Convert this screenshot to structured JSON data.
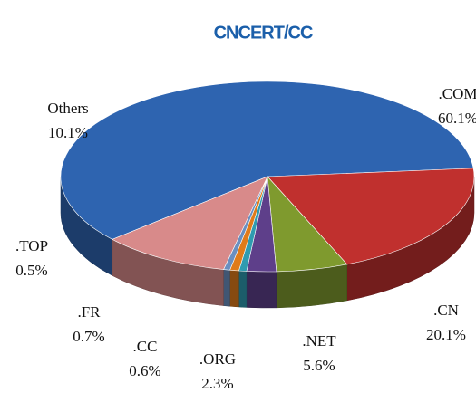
{
  "chart_data": {
    "type": "pie3d",
    "title": "CNCERT/CC",
    "categories": [
      ".COM",
      ".CN",
      ".NET",
      ".ORG",
      ".CC",
      ".FR",
      ".TOP",
      "Others"
    ],
    "values": [
      60.1,
      20.1,
      5.6,
      2.3,
      0.6,
      0.7,
      0.5,
      10.1
    ],
    "value_labels": [
      "60.1%",
      "20.1%",
      "5.6%",
      "2.3%",
      "0.6%",
      "0.7%",
      "0.5%",
      "10.1%"
    ],
    "colors": [
      "#2e64b0",
      "#c0302e",
      "#7f9a2e",
      "#5e3f8a",
      "#2f9bb0",
      "#e07b1a",
      "#6a8fc0",
      "#d88a8a"
    ]
  }
}
